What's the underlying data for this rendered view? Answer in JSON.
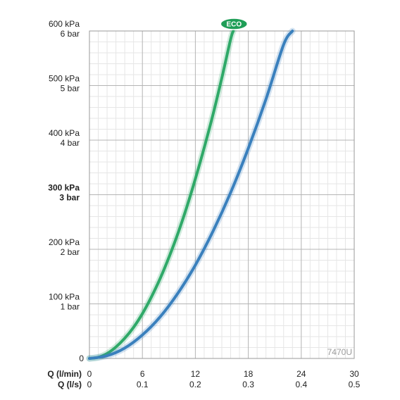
{
  "chart_data": {
    "type": "line",
    "model_label": "7470U",
    "x_axis": {
      "range": [
        0,
        30
      ],
      "ticks": [
        {
          "value": 0,
          "primary": "0",
          "secondary": "0"
        },
        {
          "value": 6,
          "primary": "6",
          "secondary": "0.1"
        },
        {
          "value": 12,
          "primary": "12",
          "secondary": "0.2"
        },
        {
          "value": 18,
          "primary": "18",
          "secondary": "0.3"
        },
        {
          "value": 24,
          "primary": "24",
          "secondary": "0.4"
        },
        {
          "value": 30,
          "primary": "30",
          "secondary": "0.5"
        }
      ],
      "label_primary": "Q (l/min)",
      "label_secondary": "Q (l/s)"
    },
    "y_axis": {
      "range": [
        0,
        600
      ],
      "ticks": [
        {
          "value": 0,
          "lines": [
            "0"
          ],
          "bold": false
        },
        {
          "value": 100,
          "lines": [
            "100 kPa",
            "1 bar"
          ],
          "bold": false
        },
        {
          "value": 200,
          "lines": [
            "200 kPa",
            "2 bar"
          ],
          "bold": false
        },
        {
          "value": 300,
          "lines": [
            "300 kPa",
            "3 bar"
          ],
          "bold": true
        },
        {
          "value": 400,
          "lines": [
            "400 kPa",
            "4 bar"
          ],
          "bold": false
        },
        {
          "value": 500,
          "lines": [
            "500 kPa",
            "5 bar"
          ],
          "bold": false
        },
        {
          "value": 600,
          "lines": [
            "600 kPa",
            "6 bar"
          ],
          "bold": false
        }
      ]
    },
    "grid": true,
    "series": [
      {
        "name": "ECO",
        "color": "#2fa968",
        "x": [
          0,
          1,
          2,
          3,
          4,
          5,
          6,
          7,
          8,
          9,
          10,
          11,
          12,
          13,
          14,
          15,
          16,
          16.3
        ],
        "y": [
          0,
          2,
          9,
          21,
          37,
          57,
          82,
          112,
          146,
          185,
          228,
          276,
          329,
          386,
          447,
          514,
          585,
          600
        ]
      },
      {
        "name": "",
        "color": "#3a80bd",
        "x": [
          0,
          2,
          4,
          6,
          8,
          10,
          12,
          14,
          16,
          18,
          20,
          22,
          23
        ],
        "y": [
          0,
          5,
          19,
          43,
          76,
          119,
          171,
          233,
          304,
          385,
          475,
          575,
          600
        ]
      }
    ]
  }
}
